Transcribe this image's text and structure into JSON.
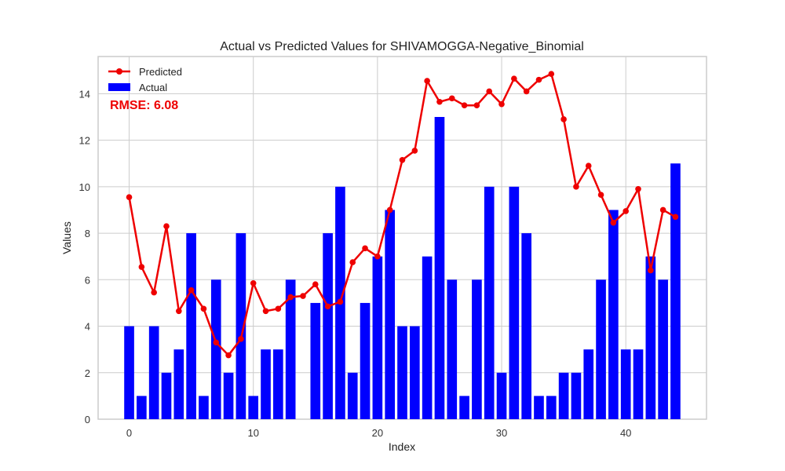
{
  "chart_data": {
    "type": "bar",
    "title": "Actual vs Predicted Values for SHIVAMOGGA-Negative_Binomial",
    "xlabel": "Index",
    "ylabel": "Values",
    "annotation": "RMSE: 6.08",
    "xlim": [
      -2.5,
      46.5
    ],
    "ylim": [
      0,
      15.6
    ],
    "x_ticks": [
      0,
      10,
      20,
      30,
      40
    ],
    "y_ticks": [
      0,
      2,
      4,
      6,
      8,
      10,
      12,
      14
    ],
    "grid": true,
    "legend": "top-left",
    "x": [
      0,
      1,
      2,
      3,
      4,
      5,
      6,
      7,
      8,
      9,
      10,
      11,
      12,
      13,
      14,
      15,
      16,
      17,
      18,
      19,
      20,
      21,
      22,
      23,
      24,
      25,
      26,
      27,
      28,
      29,
      30,
      31,
      32,
      33,
      34,
      35,
      36,
      37,
      38,
      39,
      40,
      41,
      42,
      43,
      44
    ],
    "series": [
      {
        "name": "Actual",
        "type": "bar",
        "color": "#0000ff",
        "values": [
          4,
          1,
          4,
          2,
          3,
          8,
          1,
          6,
          2,
          8,
          1,
          3,
          3,
          6,
          0,
          5,
          8,
          10,
          2,
          5,
          7,
          9,
          4,
          4,
          7,
          13,
          6,
          1,
          6,
          10,
          2,
          10,
          8,
          1,
          1,
          2,
          2,
          3,
          6,
          9,
          3,
          3,
          7,
          6,
          11
        ]
      },
      {
        "name": "Predicted",
        "type": "line",
        "color": "#ee0000",
        "values": [
          9.55,
          6.55,
          5.45,
          8.3,
          4.65,
          5.55,
          4.75,
          3.3,
          2.75,
          3.45,
          5.85,
          4.65,
          4.75,
          5.25,
          5.3,
          5.8,
          4.85,
          5.05,
          6.75,
          7.35,
          7.0,
          9.0,
          11.15,
          11.55,
          14.55,
          13.65,
          13.8,
          13.5,
          13.5,
          14.1,
          13.55,
          14.65,
          14.1,
          14.6,
          14.85,
          12.9,
          10.0,
          10.9,
          9.65,
          8.45,
          8.95,
          9.9,
          6.4,
          9.0,
          8.7
        ]
      }
    ]
  },
  "colors": {
    "actual": "#0000ff",
    "predicted": "#ee0000",
    "grid": "#cccccc",
    "frame": "#cccccc"
  }
}
